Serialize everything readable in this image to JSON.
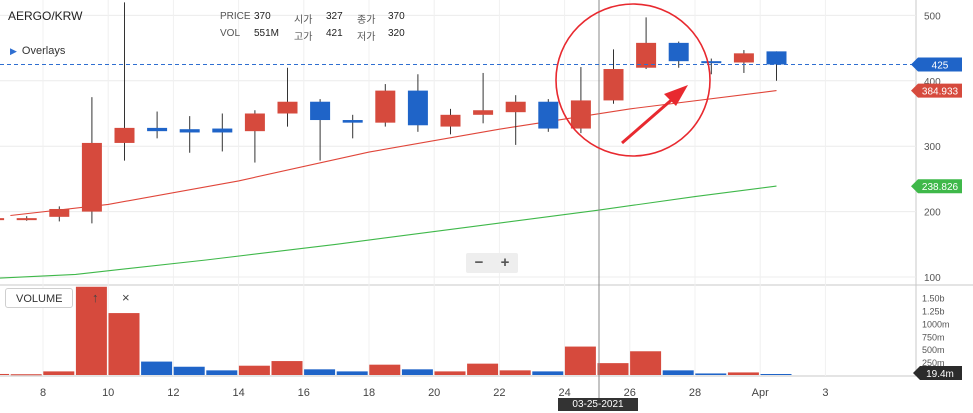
{
  "header": {
    "symbol": "AERGO/KRW",
    "overlays_label": "Overlays",
    "price_label": "PRICE",
    "price_value": "370",
    "open_label": "시가",
    "open_value": "327",
    "close_label": "종가",
    "close_value": "370",
    "vol_label": "VOL",
    "vol_value": "551M",
    "high_label": "고가",
    "high_value": "421",
    "low_label": "저가",
    "low_value": "320"
  },
  "volume_panel": {
    "label": "VOLUME",
    "up_label": "↑",
    "close_label": "×"
  },
  "zoom": {
    "minus": "−",
    "plus": "+"
  },
  "crosshair_date": "03-25-2021",
  "colors": {
    "up": "#d64a3d",
    "down": "#1f64c8",
    "ma_short": "#e0463a",
    "ma_long": "#3fb84a",
    "annotation": "#e8292f"
  },
  "chart_data": {
    "type": "candlestick",
    "x_ticks": [
      "8",
      "10",
      "12",
      "14",
      "16",
      "18",
      "20",
      "22",
      "24",
      "26",
      "28",
      "Apr",
      "3"
    ],
    "price_axis_ticks": [
      "500",
      "400",
      "300",
      "200",
      "100"
    ],
    "volume_axis_ticks": [
      "1.50b",
      "1.25b",
      "1000m",
      "750m",
      "500m",
      "250m"
    ],
    "price_labels": [
      {
        "value": "425",
        "color": "#1f64c8"
      },
      {
        "value": "384.933",
        "color": "#d64a3d"
      },
      {
        "value": "238.826",
        "color": "#3fb84a"
      }
    ],
    "volume_label": "19.4m",
    "price_range": [
      80,
      520
    ],
    "volume_range": [
      0,
      1700
    ],
    "candles": [
      {
        "day": 6.5,
        "o": 188,
        "h": 194,
        "l": 182,
        "c": 190,
        "v": 20
      },
      {
        "day": 7.5,
        "o": 190,
        "h": 193,
        "l": 186,
        "c": 190,
        "v": 15
      },
      {
        "day": 8.5,
        "o": 192,
        "h": 208,
        "l": 185,
        "c": 204,
        "v": 70
      },
      {
        "day": 9.5,
        "o": 200,
        "h": 375,
        "l": 182,
        "c": 305,
        "v": 1710
      },
      {
        "day": 10.5,
        "o": 305,
        "h": 520,
        "l": 278,
        "c": 328,
        "v": 1200
      },
      {
        "day": 11.5,
        "o": 328,
        "h": 353,
        "l": 312,
        "c": 323,
        "v": 260
      },
      {
        "day": 12.5,
        "o": 326,
        "h": 346,
        "l": 290,
        "c": 321,
        "v": 160
      },
      {
        "day": 13.5,
        "o": 327,
        "h": 350,
        "l": 292,
        "c": 321,
        "v": 90
      },
      {
        "day": 14.5,
        "o": 323,
        "h": 355,
        "l": 275,
        "c": 350,
        "v": 180
      },
      {
        "day": 15.5,
        "o": 350,
        "h": 420,
        "l": 330,
        "c": 368,
        "v": 270
      },
      {
        "day": 16.5,
        "o": 368,
        "h": 372,
        "l": 278,
        "c": 340,
        "v": 110
      },
      {
        "day": 17.5,
        "o": 340,
        "h": 348,
        "l": 312,
        "c": 336,
        "v": 70
      },
      {
        "day": 18.5,
        "o": 336,
        "h": 395,
        "l": 330,
        "c": 385,
        "v": 200
      },
      {
        "day": 19.5,
        "o": 385,
        "h": 410,
        "l": 322,
        "c": 332,
        "v": 110
      },
      {
        "day": 20.5,
        "o": 330,
        "h": 357,
        "l": 318,
        "c": 348,
        "v": 70
      },
      {
        "day": 21.5,
        "o": 348,
        "h": 412,
        "l": 335,
        "c": 355,
        "v": 220
      },
      {
        "day": 22.5,
        "o": 352,
        "h": 378,
        "l": 302,
        "c": 368,
        "v": 90
      },
      {
        "day": 23.5,
        "o": 368,
        "h": 372,
        "l": 322,
        "c": 327,
        "v": 70
      },
      {
        "day": 24.5,
        "o": 327,
        "h": 421,
        "l": 320,
        "c": 370,
        "v": 551
      },
      {
        "day": 25.5,
        "o": 370,
        "h": 448,
        "l": 365,
        "c": 418,
        "v": 230
      },
      {
        "day": 26.5,
        "o": 420,
        "h": 497,
        "l": 418,
        "c": 458,
        "v": 460
      },
      {
        "day": 27.5,
        "o": 458,
        "h": 460,
        "l": 420,
        "c": 430,
        "v": 90
      },
      {
        "day": 28.5,
        "o": 430,
        "h": 434,
        "l": 410,
        "c": 428,
        "v": 30
      },
      {
        "day": 29.5,
        "o": 428,
        "h": 447,
        "l": 412,
        "c": 442,
        "v": 50
      },
      {
        "day": 30.5,
        "o": 445,
        "h": 445,
        "l": 400,
        "c": 425,
        "v": 19.4
      }
    ],
    "series": [
      {
        "name": "",
        "type": "line",
        "points": [
          [
            7,
            194
          ],
          [
            10,
            211
          ],
          [
            14,
            247
          ],
          [
            18,
            291
          ],
          [
            22,
            326
          ],
          [
            26,
            357
          ],
          [
            30.5,
            385
          ]
        ]
      },
      {
        "name": "",
        "type": "line",
        "points": [
          [
            6.5,
            98
          ],
          [
            9,
            104
          ],
          [
            13,
            126
          ],
          [
            17,
            150
          ],
          [
            21,
            176
          ],
          [
            25,
            202
          ],
          [
            28,
            223
          ],
          [
            30.5,
            239
          ]
        ]
      }
    ]
  }
}
